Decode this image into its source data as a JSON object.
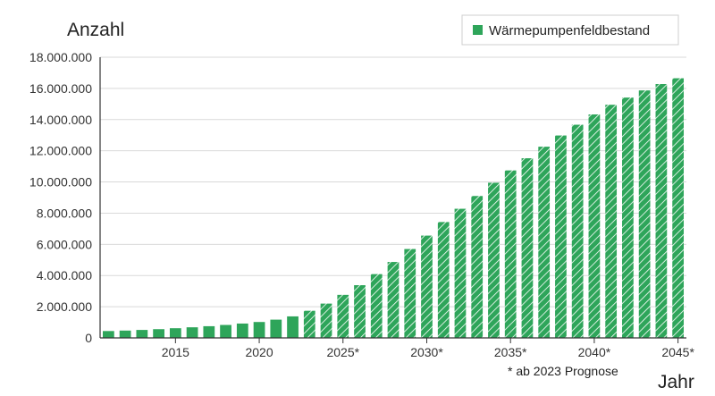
{
  "chart_data": {
    "type": "bar",
    "ylabel": "Anzahl",
    "xlabel": "Jahr",
    "legend": {
      "label": "Wärmepumpenfeldbestand",
      "position": "top-right"
    },
    "note": "* ab 2023 Prognose",
    "ylim": [
      0,
      18000000
    ],
    "y_ticks": [
      {
        "value": 0,
        "label": "0"
      },
      {
        "value": 2000000,
        "label": "2.000.000"
      },
      {
        "value": 4000000,
        "label": "4.000.000"
      },
      {
        "value": 6000000,
        "label": "6.000.000"
      },
      {
        "value": 8000000,
        "label": "8.000.000"
      },
      {
        "value": 10000000,
        "label": "10.000.000"
      },
      {
        "value": 12000000,
        "label": "12.000.000"
      },
      {
        "value": 14000000,
        "label": "14.000.000"
      },
      {
        "value": 16000000,
        "label": "16.000.000"
      },
      {
        "value": 18000000,
        "label": "18.000.000"
      }
    ],
    "x_ticks": [
      {
        "year": 2015,
        "label": "2015"
      },
      {
        "year": 2020,
        "label": "2020"
      },
      {
        "year": 2025,
        "label": "2025*"
      },
      {
        "year": 2030,
        "label": "2030*"
      },
      {
        "year": 2035,
        "label": "2035*"
      },
      {
        "year": 2040,
        "label": "2040*"
      },
      {
        "year": 2045,
        "label": "2045*"
      }
    ],
    "forecast_from": 2023,
    "grid": true,
    "color": "#2ea55a",
    "years": [
      2011,
      2012,
      2013,
      2014,
      2015,
      2016,
      2017,
      2018,
      2019,
      2020,
      2021,
      2022,
      2023,
      2024,
      2025,
      2026,
      2027,
      2028,
      2029,
      2030,
      2031,
      2032,
      2033,
      2034,
      2035,
      2036,
      2037,
      2038,
      2039,
      2040,
      2041,
      2042,
      2043,
      2044,
      2045
    ],
    "values": [
      440000,
      470000,
      510000,
      560000,
      620000,
      680000,
      750000,
      830000,
      920000,
      1020000,
      1170000,
      1380000,
      1740000,
      2200000,
      2760000,
      3380000,
      4090000,
      4870000,
      5700000,
      6560000,
      7430000,
      8280000,
      9100000,
      9950000,
      10740000,
      11520000,
      12260000,
      12980000,
      13670000,
      14330000,
      14950000,
      15410000,
      15870000,
      16280000,
      16650000
    ]
  }
}
